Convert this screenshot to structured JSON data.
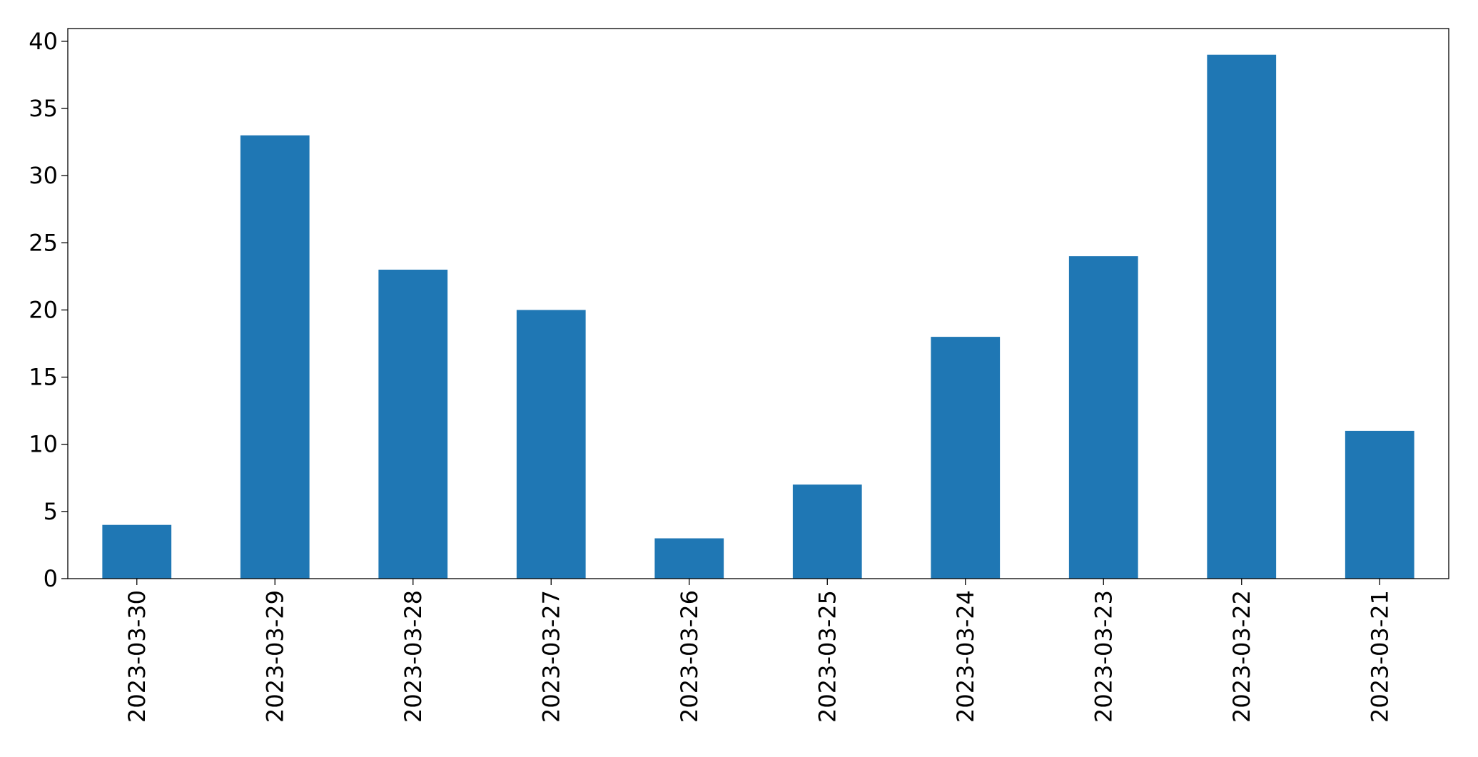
{
  "chart_data": {
    "type": "bar",
    "categories": [
      "2023-03-30",
      "2023-03-29",
      "2023-03-28",
      "2023-03-27",
      "2023-03-26",
      "2023-03-25",
      "2023-03-24",
      "2023-03-23",
      "2023-03-22",
      "2023-03-21"
    ],
    "values": [
      4,
      33,
      23,
      20,
      3,
      7,
      18,
      24,
      39,
      11
    ],
    "color": "#1f77b4",
    "ylim": [
      0,
      40.95
    ],
    "yticks": [
      0,
      5,
      10,
      15,
      20,
      25,
      30,
      35,
      40
    ],
    "grid": false
  }
}
